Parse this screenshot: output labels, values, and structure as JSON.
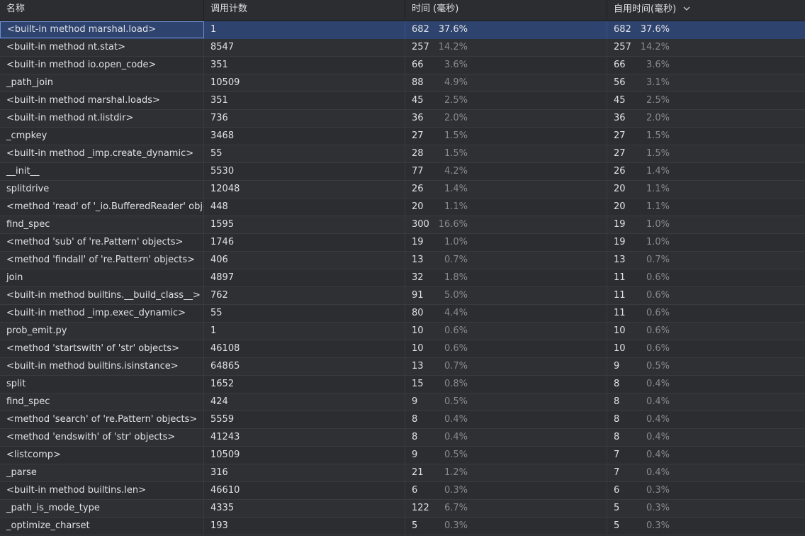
{
  "columns": {
    "name": "名称",
    "calls": "调用计数",
    "time": "时间 (毫秒)",
    "own_time": "自用时间(毫秒)",
    "sort_icon": "chevron-down-icon"
  },
  "selected_row": 0,
  "rows": [
    {
      "name": "<built-in method marshal.load>",
      "calls": "1",
      "time": "682",
      "time_pct": "37.6%",
      "own": "682",
      "own_pct": "37.6%"
    },
    {
      "name": "<built-in method nt.stat>",
      "calls": "8547",
      "time": "257",
      "time_pct": "14.2%",
      "own": "257",
      "own_pct": "14.2%"
    },
    {
      "name": "<built-in method io.open_code>",
      "calls": "351",
      "time": "66",
      "time_pct": "3.6%",
      "own": "66",
      "own_pct": "3.6%"
    },
    {
      "name": "_path_join",
      "calls": "10509",
      "time": "88",
      "time_pct": "4.9%",
      "own": "56",
      "own_pct": "3.1%"
    },
    {
      "name": "<built-in method marshal.loads>",
      "calls": "351",
      "time": "45",
      "time_pct": "2.5%",
      "own": "45",
      "own_pct": "2.5%"
    },
    {
      "name": "<built-in method nt.listdir>",
      "calls": "736",
      "time": "36",
      "time_pct": "2.0%",
      "own": "36",
      "own_pct": "2.0%"
    },
    {
      "name": "_cmpkey",
      "calls": "3468",
      "time": "27",
      "time_pct": "1.5%",
      "own": "27",
      "own_pct": "1.5%"
    },
    {
      "name": "<built-in method _imp.create_dynamic>",
      "calls": "55",
      "time": "28",
      "time_pct": "1.5%",
      "own": "27",
      "own_pct": "1.5%"
    },
    {
      "name": "__init__",
      "calls": "5530",
      "time": "77",
      "time_pct": "4.2%",
      "own": "26",
      "own_pct": "1.4%"
    },
    {
      "name": "splitdrive",
      "calls": "12048",
      "time": "26",
      "time_pct": "1.4%",
      "own": "20",
      "own_pct": "1.1%"
    },
    {
      "name": "<method 'read' of '_io.BufferedReader' objec",
      "calls": "448",
      "time": "20",
      "time_pct": "1.1%",
      "own": "20",
      "own_pct": "1.1%"
    },
    {
      "name": "find_spec",
      "calls": "1595",
      "time": "300",
      "time_pct": "16.6%",
      "own": "19",
      "own_pct": "1.0%"
    },
    {
      "name": "<method 'sub' of 're.Pattern' objects>",
      "calls": "1746",
      "time": "19",
      "time_pct": "1.0%",
      "own": "19",
      "own_pct": "1.0%"
    },
    {
      "name": "<method 'findall' of 're.Pattern' objects>",
      "calls": "406",
      "time": "13",
      "time_pct": "0.7%",
      "own": "13",
      "own_pct": "0.7%"
    },
    {
      "name": "join",
      "calls": "4897",
      "time": "32",
      "time_pct": "1.8%",
      "own": "11",
      "own_pct": "0.6%"
    },
    {
      "name": "<built-in method builtins.__build_class__>",
      "calls": "762",
      "time": "91",
      "time_pct": "5.0%",
      "own": "11",
      "own_pct": "0.6%"
    },
    {
      "name": "<built-in method _imp.exec_dynamic>",
      "calls": "55",
      "time": "80",
      "time_pct": "4.4%",
      "own": "11",
      "own_pct": "0.6%"
    },
    {
      "name": "prob_emit.py",
      "calls": "1",
      "time": "10",
      "time_pct": "0.6%",
      "own": "10",
      "own_pct": "0.6%"
    },
    {
      "name": "<method 'startswith' of 'str' objects>",
      "calls": "46108",
      "time": "10",
      "time_pct": "0.6%",
      "own": "10",
      "own_pct": "0.6%"
    },
    {
      "name": "<built-in method builtins.isinstance>",
      "calls": "64865",
      "time": "13",
      "time_pct": "0.7%",
      "own": "9",
      "own_pct": "0.5%"
    },
    {
      "name": "split",
      "calls": "1652",
      "time": "15",
      "time_pct": "0.8%",
      "own": "8",
      "own_pct": "0.4%"
    },
    {
      "name": "find_spec",
      "calls": "424",
      "time": "9",
      "time_pct": "0.5%",
      "own": "8",
      "own_pct": "0.4%"
    },
    {
      "name": "<method 'search' of 're.Pattern' objects>",
      "calls": "5559",
      "time": "8",
      "time_pct": "0.4%",
      "own": "8",
      "own_pct": "0.4%"
    },
    {
      "name": "<method 'endswith' of 'str' objects>",
      "calls": "41243",
      "time": "8",
      "time_pct": "0.4%",
      "own": "8",
      "own_pct": "0.4%"
    },
    {
      "name": "<listcomp>",
      "calls": "10509",
      "time": "9",
      "time_pct": "0.5%",
      "own": "7",
      "own_pct": "0.4%"
    },
    {
      "name": "_parse",
      "calls": "316",
      "time": "21",
      "time_pct": "1.2%",
      "own": "7",
      "own_pct": "0.4%"
    },
    {
      "name": "<built-in method builtins.len>",
      "calls": "46610",
      "time": "6",
      "time_pct": "0.3%",
      "own": "6",
      "own_pct": "0.3%"
    },
    {
      "name": "_path_is_mode_type",
      "calls": "4335",
      "time": "122",
      "time_pct": "6.7%",
      "own": "5",
      "own_pct": "0.3%"
    },
    {
      "name": "_optimize_charset",
      "calls": "193",
      "time": "5",
      "time_pct": "0.3%",
      "own": "5",
      "own_pct": "0.3%"
    }
  ]
}
